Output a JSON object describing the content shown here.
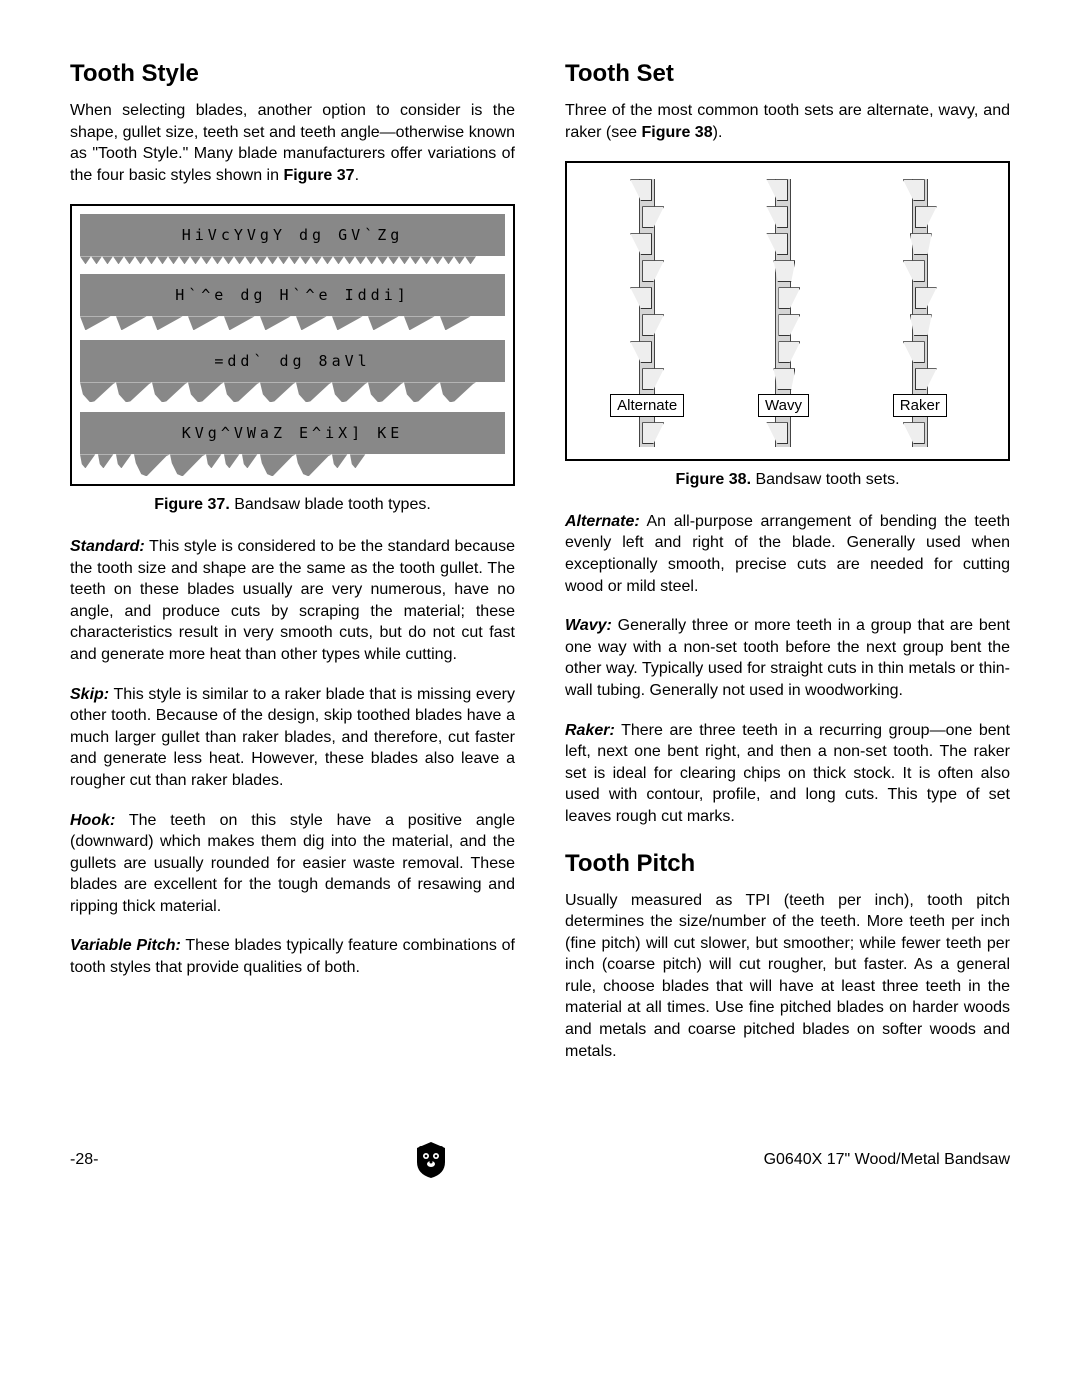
{
  "left": {
    "h_toothStyle": "Tooth Style",
    "intro": "When selecting blades, another option to consider is the shape, gullet size, teeth set and teeth angle—otherwise known as \"Tooth Style.\" Many blade manufacturers offer variations of the four basic styles shown in ",
    "intro_figref": "Figure 37",
    "intro_end": ".",
    "fig37": {
      "blades": [
        {
          "label": "HiVcYVgY  dg  GV`Zg",
          "teeth_type": "std",
          "count": 36
        },
        {
          "label": "H`^e  dg  H`^e  Iddi]",
          "teeth_type": "skip",
          "count": 11
        },
        {
          "label": "=dd`  dg  8aVl",
          "teeth_type": "hook",
          "count": 11
        },
        {
          "label": "KVg^VWaZ  E^iX]  KE",
          "teeth_type": "var",
          "count": 8
        }
      ],
      "caption_b": "Figure 37.",
      "caption_r": " Bandsaw blade tooth types."
    },
    "p_standard_lbl": "Standard:",
    "p_standard": " This style is considered to be the standard because the tooth size and shape are the same as the tooth gullet. The teeth on these blades usually are very numerous, have no angle, and produce cuts by scraping the material; these characteristics result in very smooth cuts, but do not cut fast and generate more heat than other types while cutting.",
    "p_skip_lbl": "Skip:",
    "p_skip": " This style is similar to a raker blade that is missing every other tooth. Because of the design, skip toothed blades have a much larger gullet than raker blades, and therefore, cut faster and generate less heat. However, these blades also leave a rougher cut than raker blades.",
    "p_hook_lbl": "Hook:",
    "p_hook": " The teeth on this style have a positive angle (downward) which makes them dig into the material, and the gullets are usually rounded for easier waste removal. These blades are excellent for the tough demands of resawing and ripping thick material.",
    "p_vp_lbl": "Variable Pitch:",
    "p_vp": " These blades typically feature combinations of tooth styles that provide qualities of both."
  },
  "right": {
    "h_toothSet": "Tooth Set",
    "intro": "Three of the most common tooth sets are alternate, wavy, and raker (see ",
    "intro_figref": "Figure 38",
    "intro_end": ").",
    "fig38": {
      "labels": [
        "Alternate",
        "Wavy",
        "Raker"
      ],
      "caption_b": "Figure 38.",
      "caption_r": " Bandsaw tooth sets."
    },
    "p_alt_lbl": "Alternate:",
    "p_alt": " An all-purpose arrangement of bending the teeth evenly left and right of the blade. Generally used when exceptionally smooth, precise cuts are needed for cutting wood or mild steel.",
    "p_wavy_lbl": "Wavy:",
    "p_wavy": " Generally three or more teeth in a group that are bent one way with a non-set tooth before the next group bent the other way. Typically used for straight cuts in thin metals or thin-wall tubing. Generally not used in woodworking.",
    "p_raker_lbl": "Raker:",
    "p_raker": " There are three teeth in a recurring group—one bent left, next one bent right, and then a non-set tooth. The raker set is ideal for clearing chips on thick stock. It is often also used with contour, profile, and long cuts. This type of set leaves rough cut marks.",
    "h_toothPitch": "Tooth Pitch",
    "p_pitch": "Usually measured as TPI (teeth per inch), tooth pitch determines the size/number of the teeth. More teeth per inch (fine pitch) will cut slower, but smoother; while fewer teeth per inch (coarse pitch) will cut rougher, but faster. As a general rule, choose blades that will have at least three teeth in the material at all times. Use fine pitched blades on harder woods and metals and coarse pitched blades on softer woods and metals."
  },
  "footer": {
    "page": "-28-",
    "model": "G0640X 17\" Wood/Metal Bandsaw"
  },
  "colors": {
    "blade_fill": "#888888",
    "border": "#000000",
    "set_blade": "#d5d5d5",
    "set_tooth": "#eeeeee"
  }
}
